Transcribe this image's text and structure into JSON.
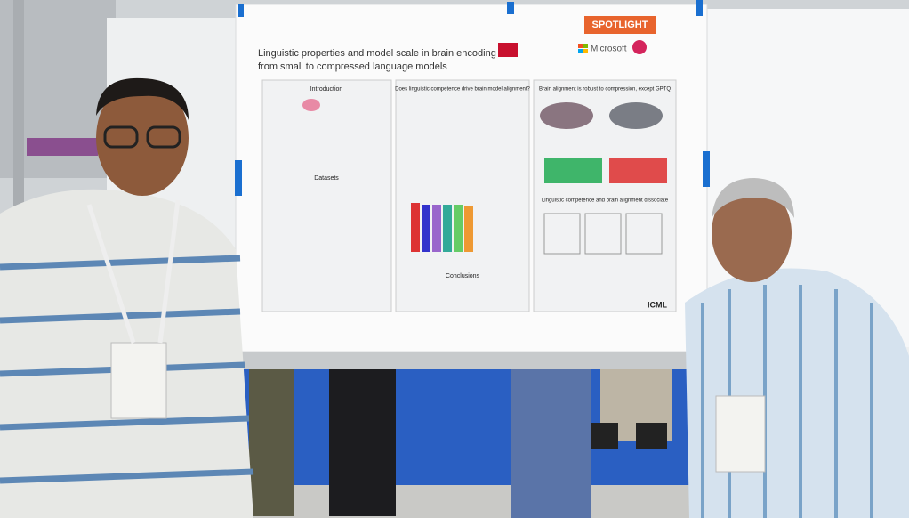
{
  "poster": {
    "badge": "SPOTLIGHT",
    "title_lines": [
      "Linguistic properties and model scale in brain encoding",
      "from small to compressed language models"
    ],
    "logo": "Microsoft",
    "sections": {
      "intro": "Introduction",
      "datasets": "Datasets",
      "conclusions": "Conclusions",
      "competence": "Does linguistic competence drive brain model alignment?",
      "compression": "Brain alignment is robust to compression, except GPTQ",
      "dissociate": "Linguistic competence and brain alignment dissociate"
    },
    "footer_logo": "ICML"
  }
}
